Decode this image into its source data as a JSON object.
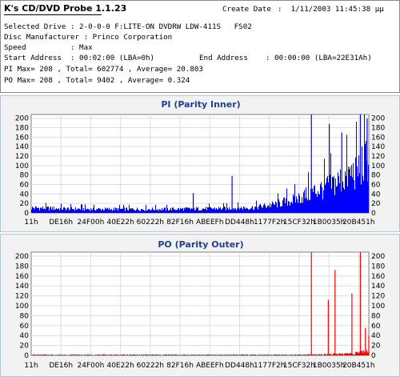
{
  "app": {
    "title": "K's CD/DVD Probe 1.1.23"
  },
  "info": {
    "create_date_label": "Create Date",
    "create_date_value": ":  1/11/2003 11:45:38 μμ",
    "selected_drive": "Selected Drive : 2-0-0-0 F:LITE-ON DVDRW LDW-411S   FS02",
    "disc_manufacturer": "Disc Manufacturer : Princo Corporation",
    "speed": "Speed          : Max",
    "start_address": "Start Address  : 00:02:00 (LBA=0h)",
    "end_address": "End Address    : 00:00:00 (LBA=22E31Ah)",
    "pi_stats": "PI Max= 208 , Total= 602774 , Average= 20.803",
    "po_stats": "PO Max= 208 , Total= 9402 , Average= 0.324"
  },
  "colors": {
    "pi": "#0000ff",
    "po": "#ff0000",
    "title": "#1f3f8f",
    "plot_bg": "#ffffff",
    "grid": "#dddddd"
  },
  "chart_data": [
    {
      "type": "area",
      "title": "PI (Parity Inner)",
      "x_tick_labels": [
        "11h",
        "DE16h",
        "24F00h",
        "40E22h",
        "60222h",
        "82F16h",
        "ABEEFh",
        "DD448h",
        "1177F2h",
        "15CF32h",
        "1B0035h",
        "20B451h"
      ],
      "y_ticks": [
        0,
        20,
        40,
        60,
        80,
        100,
        120,
        140,
        160,
        180,
        200
      ],
      "ylim": [
        0,
        208
      ],
      "grid": true,
      "series": [
        {
          "baseline": [
            [
              0,
              12
            ],
            [
              0.1,
              10
            ],
            [
              0.2,
              9
            ],
            [
              0.3,
              9
            ],
            [
              0.4,
              9
            ],
            [
              0.5,
              10
            ],
            [
              0.58,
              11
            ],
            [
              0.66,
              13
            ],
            [
              0.72,
              20
            ],
            [
              0.78,
              32
            ],
            [
              0.84,
              52
            ],
            [
              0.88,
              64
            ],
            [
              0.92,
              80
            ],
            [
              0.96,
              100
            ],
            [
              0.985,
              118
            ],
            [
              1.0,
              135
            ]
          ],
          "spikes": [
            [
              0.48,
              42
            ],
            [
              0.595,
              78
            ],
            [
              0.83,
              208
            ],
            [
              0.883,
              188
            ],
            [
              0.92,
              170
            ],
            [
              0.975,
              208
            ],
            [
              0.995,
              200
            ]
          ]
        }
      ]
    },
    {
      "type": "area",
      "title": "PO (Parity Outer)",
      "x_tick_labels": [
        "11h",
        "DE16h",
        "24F00h",
        "40E22h",
        "60222h",
        "82F16h",
        "ABEEFh",
        "DD448h",
        "1177F2h",
        "15CF32h",
        "1B0035h",
        "20B451h"
      ],
      "y_ticks": [
        0,
        20,
        40,
        60,
        80,
        100,
        120,
        140,
        160,
        180,
        200
      ],
      "ylim": [
        0,
        208
      ],
      "grid": true,
      "series": [
        {
          "baseline": [
            [
              0,
              1
            ],
            [
              0.5,
              1
            ],
            [
              0.8,
              1
            ],
            [
              0.9,
              2
            ],
            [
              0.95,
              3
            ],
            [
              1.0,
              6
            ]
          ],
          "spikes": [
            [
              0.83,
              208
            ],
            [
              0.88,
              112
            ],
            [
              0.9,
              172
            ],
            [
              0.95,
              125
            ],
            [
              0.975,
              208
            ],
            [
              0.99,
              55
            ],
            [
              1.0,
              40
            ]
          ]
        }
      ]
    }
  ]
}
